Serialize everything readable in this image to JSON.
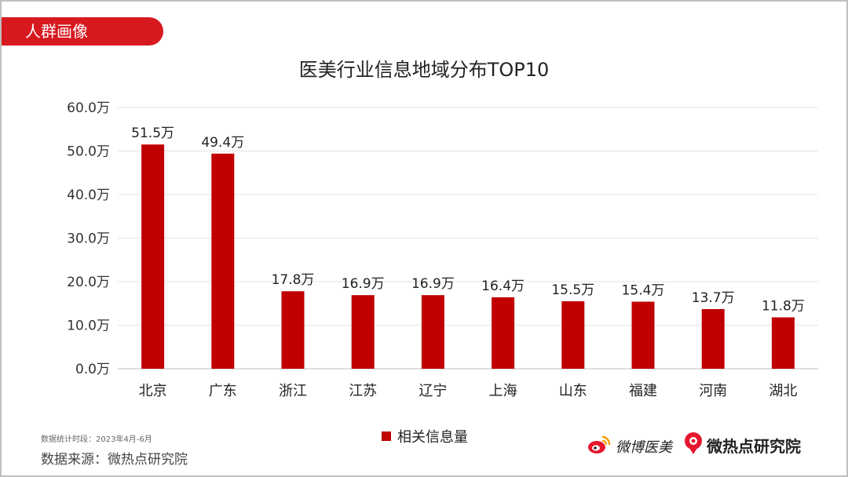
{
  "header": {
    "section_label": "人群画像"
  },
  "chart_data": {
    "type": "bar",
    "title": "医美行业信息地域分布TOP10",
    "categories": [
      "北京",
      "广东",
      "浙江",
      "江苏",
      "辽宁",
      "上海",
      "山东",
      "福建",
      "河南",
      "湖北"
    ],
    "series": [
      {
        "name": "相关信息量",
        "values": [
          51.5,
          49.4,
          17.8,
          16.9,
          16.9,
          16.4,
          15.5,
          15.4,
          13.7,
          11.8
        ]
      }
    ],
    "data_labels": [
      "51.5万",
      "49.4万",
      "17.8万",
      "16.9万",
      "16.9万",
      "16.4万",
      "15.5万",
      "15.4万",
      "13.7万",
      "11.8万"
    ],
    "y_ticks": [
      0,
      10,
      20,
      30,
      40,
      50,
      60
    ],
    "y_tick_labels": [
      "0.0万",
      "10.0万",
      "20.0万",
      "30.0万",
      "40.0万",
      "50.0万",
      "60.0万"
    ],
    "ylim": [
      0,
      60
    ],
    "grid": true,
    "legend_position": "bottom",
    "bar_color": "#c00000"
  },
  "footer": {
    "period": "数据统计时段：2023年4月-6月",
    "source": "数据来源：微热点研究院",
    "logo_weibo": "微博医美",
    "logo_institute": "微热点研究院"
  },
  "colors": {
    "accent": "#d71920",
    "bar": "#c00000"
  },
  "icons": [
    "weibo-icon",
    "wrd-icon"
  ]
}
